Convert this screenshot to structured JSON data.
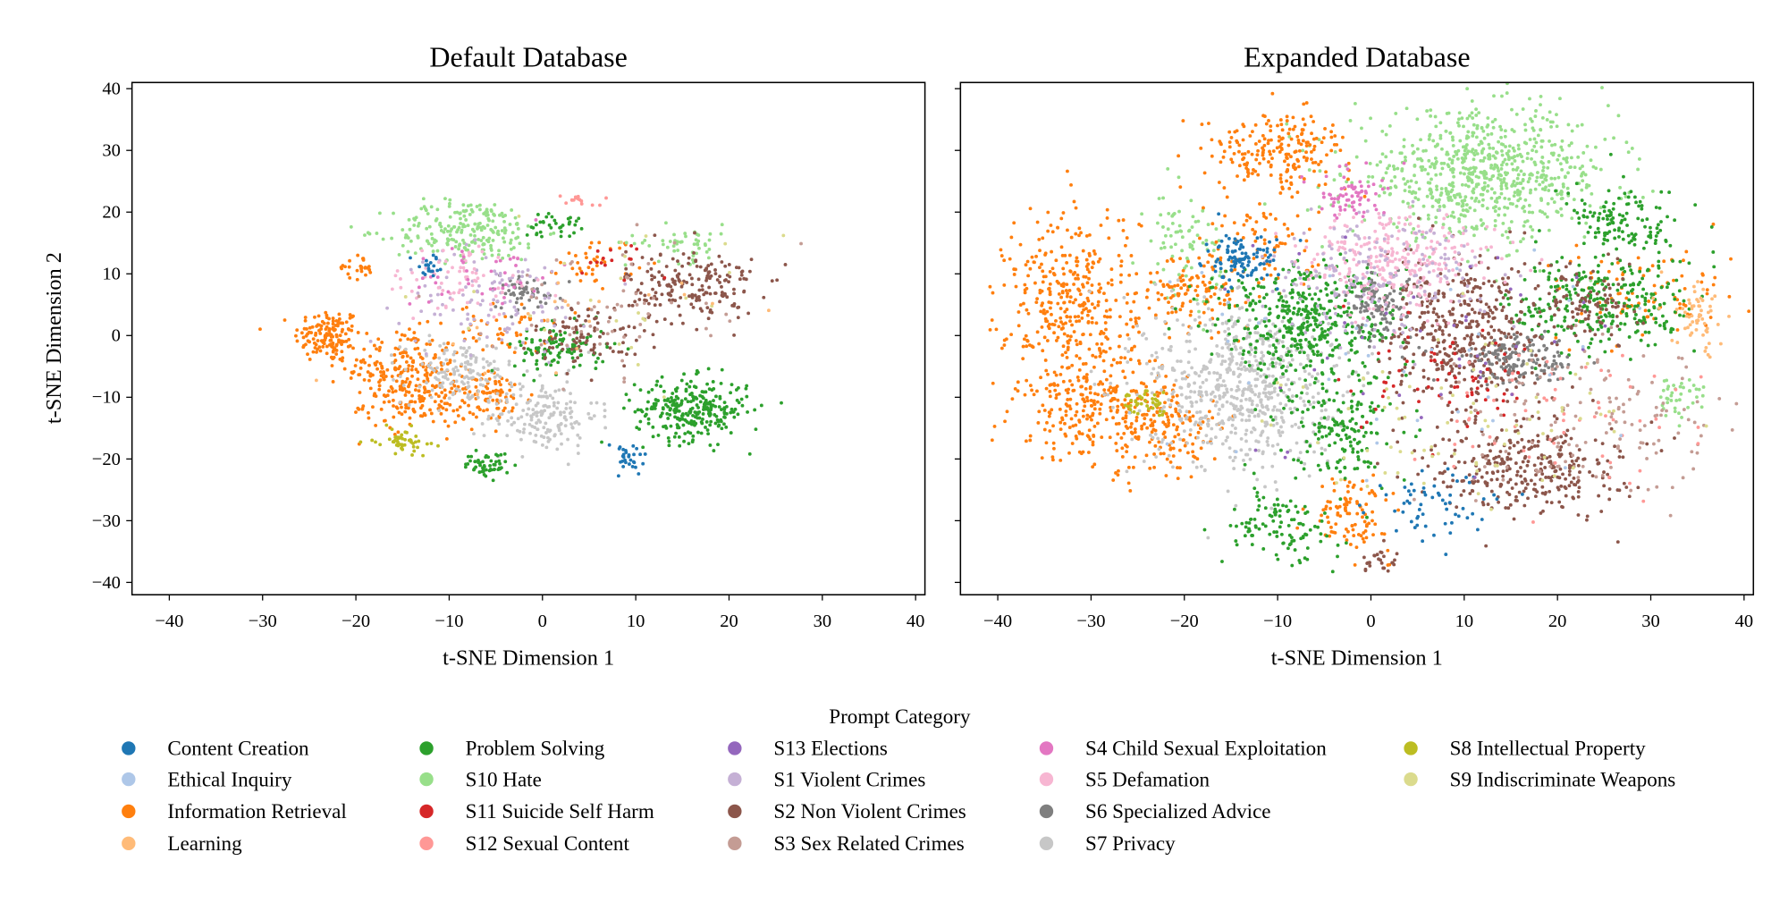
{
  "chart_data": [
    {
      "type": "scatter",
      "title": "Default Database",
      "xlabel": "t-SNE Dimension 1",
      "ylabel": "t-SNE Dimension 2",
      "xlim": [
        -44,
        41
      ],
      "ylim": [
        -42,
        41
      ],
      "xticks": [
        -40,
        -30,
        -20,
        -10,
        0,
        10,
        20,
        30,
        40
      ],
      "yticks": [
        -40,
        -30,
        -20,
        -10,
        0,
        10,
        20,
        30,
        40
      ],
      "grid": false,
      "clusters": [
        {
          "category": "Information Retrieval",
          "center": [
            -23,
            0
          ],
          "spread": [
            1.8,
            2.2
          ],
          "count": 140
        },
        {
          "category": "Information Retrieval",
          "center": [
            -15,
            -5
          ],
          "spread": [
            3,
            3
          ],
          "count": 180
        },
        {
          "category": "Information Retrieval",
          "center": [
            -13,
            -11
          ],
          "spread": [
            3,
            2
          ],
          "count": 130
        },
        {
          "category": "Information Retrieval",
          "center": [
            -5,
            -10
          ],
          "spread": [
            2,
            2
          ],
          "count": 70
        },
        {
          "category": "Information Retrieval",
          "center": [
            -4,
            1
          ],
          "spread": [
            2.5,
            2
          ],
          "count": 50
        },
        {
          "category": "Information Retrieval",
          "center": [
            -20,
            11
          ],
          "spread": [
            1,
            1
          ],
          "count": 25
        },
        {
          "category": "Information Retrieval",
          "center": [
            6,
            12
          ],
          "spread": [
            2,
            2
          ],
          "count": 40
        },
        {
          "category": "S7 Privacy",
          "center": [
            -9,
            -6
          ],
          "spread": [
            3,
            2.5
          ],
          "count": 140
        },
        {
          "category": "S7 Privacy",
          "center": [
            0,
            -13
          ],
          "spread": [
            3,
            3
          ],
          "count": 170
        },
        {
          "category": "S10 Hate",
          "center": [
            -8,
            17
          ],
          "spread": [
            4,
            2.5
          ],
          "count": 220
        },
        {
          "category": "S10 Hate",
          "center": [
            15,
            15
          ],
          "spread": [
            3,
            1.5
          ],
          "count": 50
        },
        {
          "category": "Problem Solving",
          "center": [
            16,
            -12
          ],
          "spread": [
            3,
            2.5
          ],
          "count": 280
        },
        {
          "category": "Problem Solving",
          "center": [
            2,
            -2
          ],
          "spread": [
            2.5,
            2
          ],
          "count": 110
        },
        {
          "category": "Problem Solving",
          "center": [
            -6,
            -21
          ],
          "spread": [
            1.2,
            1
          ],
          "count": 55
        },
        {
          "category": "Problem Solving",
          "center": [
            1,
            18
          ],
          "spread": [
            1.5,
            1
          ],
          "count": 35
        },
        {
          "category": "S8 Intellectual Property",
          "center": [
            -15,
            -17
          ],
          "spread": [
            1.5,
            1
          ],
          "count": 50
        },
        {
          "category": "S2 Non Violent Crimes",
          "center": [
            16,
            8
          ],
          "spread": [
            3.5,
            3
          ],
          "count": 190
        },
        {
          "category": "S2 Non Violent Crimes",
          "center": [
            5,
            0
          ],
          "spread": [
            3,
            2.5
          ],
          "count": 90
        },
        {
          "category": "S6 Specialized Advice",
          "center": [
            -2,
            7
          ],
          "spread": [
            2,
            1.5
          ],
          "count": 55
        },
        {
          "category": "S1 Violent Crimes",
          "center": [
            -5,
            6
          ],
          "spread": [
            5,
            4
          ],
          "count": 110
        },
        {
          "category": "S5 Defamation",
          "center": [
            -9,
            9
          ],
          "spread": [
            4,
            3
          ],
          "count": 70
        },
        {
          "category": "S4 Child Sexual Exploitation",
          "center": [
            -6,
            10
          ],
          "spread": [
            4,
            3
          ],
          "count": 40
        },
        {
          "category": "S3 Sex Related Crimes",
          "center": [
            6,
            4
          ],
          "spread": [
            6,
            5
          ],
          "count": 60
        },
        {
          "category": "Content Creation",
          "center": [
            9,
            -20
          ],
          "spread": [
            1.2,
            1.5
          ],
          "count": 30
        },
        {
          "category": "Content Creation",
          "center": [
            -12,
            11
          ],
          "spread": [
            1,
            1
          ],
          "count": 20
        },
        {
          "category": "S12 Sexual Content",
          "center": [
            4,
            22
          ],
          "spread": [
            1.2,
            0.5
          ],
          "count": 15
        },
        {
          "category": "S11 Suicide Self Harm",
          "center": [
            8,
            12
          ],
          "spread": [
            2,
            2
          ],
          "count": 15
        },
        {
          "category": "S9 Indiscriminate Weapons",
          "center": [
            10,
            5
          ],
          "spread": [
            8,
            6
          ],
          "count": 25
        },
        {
          "category": "Learning",
          "center": [
            0,
            3
          ],
          "spread": [
            8,
            6
          ],
          "count": 20
        }
      ]
    },
    {
      "type": "scatter",
      "title": "Expanded Database",
      "xlabel": "t-SNE Dimension 1",
      "ylabel": "",
      "xlim": [
        -44,
        41
      ],
      "ylim": [
        -42,
        41
      ],
      "xticks": [
        -40,
        -30,
        -20,
        -10,
        0,
        10,
        20,
        30,
        40
      ],
      "yticks": [
        -40,
        -30,
        -20,
        -10,
        0,
        10,
        20,
        30,
        40
      ],
      "grid": false,
      "clusters": [
        {
          "category": "S10 Hate",
          "center": [
            12,
            26
          ],
          "spread": [
            7,
            5
          ],
          "count": 750
        },
        {
          "category": "S10 Hate",
          "center": [
            -20,
            15
          ],
          "spread": [
            2,
            4
          ],
          "count": 80
        },
        {
          "category": "S10 Hate",
          "center": [
            33,
            -10
          ],
          "spread": [
            1.5,
            2
          ],
          "count": 40
        },
        {
          "category": "Information Retrieval",
          "center": [
            -32,
            5
          ],
          "spread": [
            3.5,
            8
          ],
          "count": 380
        },
        {
          "category": "Information Retrieval",
          "center": [
            -30,
            -12
          ],
          "spread": [
            4,
            4
          ],
          "count": 220
        },
        {
          "category": "Information Retrieval",
          "center": [
            -22,
            -15
          ],
          "spread": [
            3,
            4
          ],
          "count": 150
        },
        {
          "category": "Information Retrieval",
          "center": [
            -10,
            30
          ],
          "spread": [
            4,
            3
          ],
          "count": 200
        },
        {
          "category": "Information Retrieval",
          "center": [
            -19,
            8
          ],
          "spread": [
            3,
            3
          ],
          "count": 120
        },
        {
          "category": "Information Retrieval",
          "center": [
            -2,
            -29
          ],
          "spread": [
            2,
            3
          ],
          "count": 100
        },
        {
          "category": "Information Retrieval",
          "center": [
            -12,
            15
          ],
          "spread": [
            3,
            5
          ],
          "count": 80
        },
        {
          "category": "Information Retrieval",
          "center": [
            30,
            7
          ],
          "spread": [
            5,
            4
          ],
          "count": 90
        },
        {
          "category": "S7 Privacy",
          "center": [
            -14,
            -8
          ],
          "spread": [
            5,
            7
          ],
          "count": 650
        },
        {
          "category": "Problem Solving",
          "center": [
            -7,
            2
          ],
          "spread": [
            5,
            5
          ],
          "count": 450
        },
        {
          "category": "Problem Solving",
          "center": [
            25,
            5
          ],
          "spread": [
            5,
            4
          ],
          "count": 280
        },
        {
          "category": "Problem Solving",
          "center": [
            27,
            18
          ],
          "spread": [
            3,
            3
          ],
          "count": 130
        },
        {
          "category": "Problem Solving",
          "center": [
            -10,
            -31
          ],
          "spread": [
            3,
            3
          ],
          "count": 110
        },
        {
          "category": "Problem Solving",
          "center": [
            -3,
            -15
          ],
          "spread": [
            2.5,
            4
          ],
          "count": 150
        },
        {
          "category": "S2 Non Violent Crimes",
          "center": [
            10,
            0
          ],
          "spread": [
            4,
            6
          ],
          "count": 420
        },
        {
          "category": "S2 Non Violent Crimes",
          "center": [
            17,
            -21
          ],
          "spread": [
            5,
            4
          ],
          "count": 320
        },
        {
          "category": "S2 Non Violent Crimes",
          "center": [
            23,
            5
          ],
          "spread": [
            3,
            3
          ],
          "count": 100
        },
        {
          "category": "S2 Non Violent Crimes",
          "center": [
            1,
            -36
          ],
          "spread": [
            1.5,
            1.2
          ],
          "count": 25
        },
        {
          "category": "S6 Specialized Advice",
          "center": [
            1,
            5
          ],
          "spread": [
            2,
            3
          ],
          "count": 110
        },
        {
          "category": "S6 Specialized Advice",
          "center": [
            16,
            -4
          ],
          "spread": [
            3,
            2
          ],
          "count": 140
        },
        {
          "category": "S5 Defamation",
          "center": [
            3,
            12
          ],
          "spread": [
            5,
            4
          ],
          "count": 280
        },
        {
          "category": "S1 Violent Crimes",
          "center": [
            0,
            10
          ],
          "spread": [
            6,
            5
          ],
          "count": 180
        },
        {
          "category": "S4 Child Sexual Exploitation",
          "center": [
            -2,
            23
          ],
          "spread": [
            2,
            2
          ],
          "count": 70
        },
        {
          "category": "Content Creation",
          "center": [
            -14,
            12
          ],
          "spread": [
            2,
            2
          ],
          "count": 110
        },
        {
          "category": "Content Creation",
          "center": [
            7,
            -28
          ],
          "spread": [
            3,
            3
          ],
          "count": 60
        },
        {
          "category": "Learning",
          "center": [
            35,
            3
          ],
          "spread": [
            1.5,
            3
          ],
          "count": 60
        },
        {
          "category": "S8 Intellectual Property",
          "center": [
            -24,
            -11
          ],
          "spread": [
            1.5,
            1
          ],
          "count": 40
        },
        {
          "category": "S11 Suicide Self Harm",
          "center": [
            10,
            -8
          ],
          "spread": [
            6,
            4
          ],
          "count": 60
        },
        {
          "category": "S3 Sex Related Crimes",
          "center": [
            25,
            -15
          ],
          "spread": [
            7,
            6
          ],
          "count": 140
        },
        {
          "category": "S12 Sexual Content",
          "center": [
            20,
            -12
          ],
          "spread": [
            8,
            6
          ],
          "count": 60
        },
        {
          "category": "S13 Elections",
          "center": [
            5,
            0
          ],
          "spread": [
            12,
            10
          ],
          "count": 40
        },
        {
          "category": "S9 Indiscriminate Weapons",
          "center": [
            10,
            -12
          ],
          "spread": [
            10,
            6
          ],
          "count": 80
        },
        {
          "category": "Ethical Inquiry",
          "center": [
            0,
            -5
          ],
          "spread": [
            15,
            12
          ],
          "count": 40
        }
      ]
    }
  ],
  "legend": {
    "title": "Prompt Category",
    "placement": "bottom",
    "items": [
      {
        "label": "Content Creation",
        "color": "#1f77b4"
      },
      {
        "label": "Ethical Inquiry",
        "color": "#aec7e8"
      },
      {
        "label": "Information Retrieval",
        "color": "#ff7f0e"
      },
      {
        "label": "Learning",
        "color": "#ffbb78"
      },
      {
        "label": "Problem Solving",
        "color": "#2ca02c"
      },
      {
        "label": "S10 Hate",
        "color": "#98df8a"
      },
      {
        "label": "S11 Suicide Self Harm",
        "color": "#d62728"
      },
      {
        "label": "S12 Sexual Content",
        "color": "#ff9896"
      },
      {
        "label": "S13 Elections",
        "color": "#9467bd"
      },
      {
        "label": "S1 Violent Crimes",
        "color": "#c5b0d5"
      },
      {
        "label": "S2 Non Violent Crimes",
        "color": "#8c564b"
      },
      {
        "label": "S3 Sex Related Crimes",
        "color": "#c49c94"
      },
      {
        "label": "S4 Child Sexual Exploitation",
        "color": "#e377c2"
      },
      {
        "label": "S5 Defamation",
        "color": "#f7b6d2"
      },
      {
        "label": "S6 Specialized Advice",
        "color": "#7f7f7f"
      },
      {
        "label": "S7 Privacy",
        "color": "#c7c7c7"
      },
      {
        "label": "S8 Intellectual Property",
        "color": "#bcbd22"
      },
      {
        "label": "S9 Indiscriminate Weapons",
        "color": "#dbdb8d"
      }
    ]
  }
}
